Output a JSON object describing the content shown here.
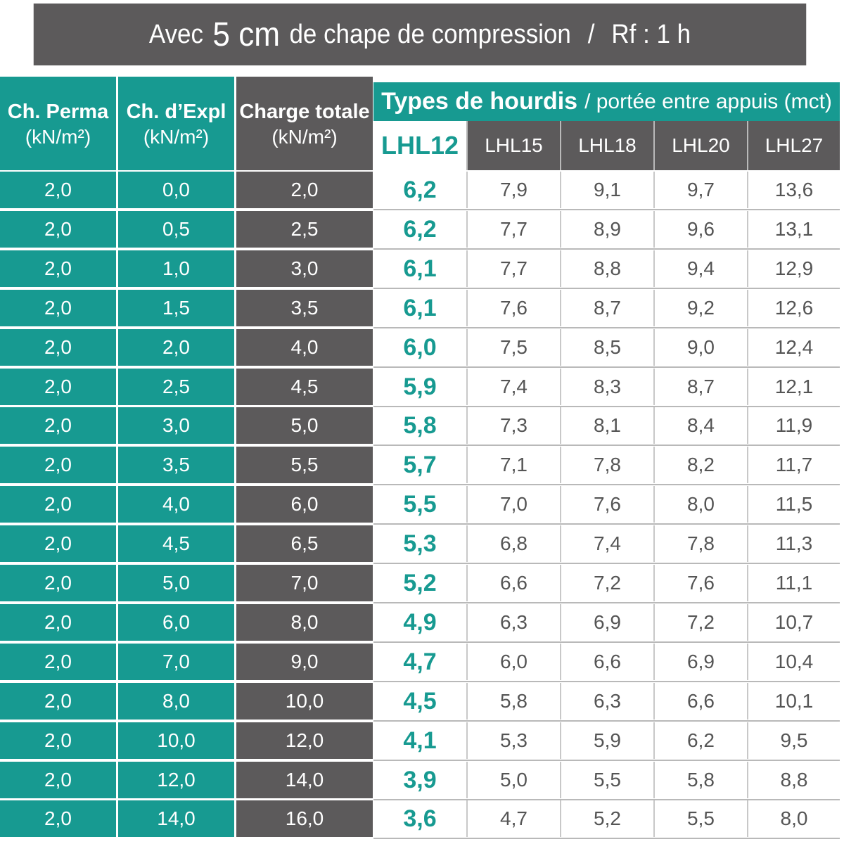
{
  "title": {
    "prefix": "Avec",
    "emphasis": "5 cm",
    "middle": "de chape de compression",
    "separator": "/",
    "suffix": "Rf : 1 h"
  },
  "headers": {
    "perma": {
      "label": "Ch. Perma",
      "unit": "(kN/m²)"
    },
    "expl": {
      "label": "Ch. d’Expl",
      "unit": "(kN/m²)"
    },
    "total": {
      "label": "Charge totale",
      "unit": "(kN/m²)"
    },
    "types": {
      "label": "Types de hourdis",
      "sub": "/ portée entre appuis (mct)"
    },
    "hourdis": [
      "LHL12",
      "LHL15",
      "LHL18",
      "LHL20",
      "LHL27"
    ]
  },
  "colors": {
    "teal": "#179a91",
    "gray": "#5c5a5b"
  },
  "rows": [
    {
      "perma": "2,0",
      "expl": "0,0",
      "total": "2,0",
      "spans": [
        "6,2",
        "7,9",
        "9,1",
        "9,7",
        "13,6"
      ]
    },
    {
      "perma": "2,0",
      "expl": "0,5",
      "total": "2,5",
      "spans": [
        "6,2",
        "7,7",
        "8,9",
        "9,6",
        "13,1"
      ]
    },
    {
      "perma": "2,0",
      "expl": "1,0",
      "total": "3,0",
      "spans": [
        "6,1",
        "7,7",
        "8,8",
        "9,4",
        "12,9"
      ]
    },
    {
      "perma": "2,0",
      "expl": "1,5",
      "total": "3,5",
      "spans": [
        "6,1",
        "7,6",
        "8,7",
        "9,2",
        "12,6"
      ]
    },
    {
      "perma": "2,0",
      "expl": "2,0",
      "total": "4,0",
      "spans": [
        "6,0",
        "7,5",
        "8,5",
        "9,0",
        "12,4"
      ]
    },
    {
      "perma": "2,0",
      "expl": "2,5",
      "total": "4,5",
      "spans": [
        "5,9",
        "7,4",
        "8,3",
        "8,7",
        "12,1"
      ]
    },
    {
      "perma": "2,0",
      "expl": "3,0",
      "total": "5,0",
      "spans": [
        "5,8",
        "7,3",
        "8,1",
        "8,4",
        "11,9"
      ]
    },
    {
      "perma": "2,0",
      "expl": "3,5",
      "total": "5,5",
      "spans": [
        "5,7",
        "7,1",
        "7,8",
        "8,2",
        "11,7"
      ]
    },
    {
      "perma": "2,0",
      "expl": "4,0",
      "total": "6,0",
      "spans": [
        "5,5",
        "7,0",
        "7,6",
        "8,0",
        "11,5"
      ]
    },
    {
      "perma": "2,0",
      "expl": "4,5",
      "total": "6,5",
      "spans": [
        "5,3",
        "6,8",
        "7,4",
        "7,8",
        "11,3"
      ]
    },
    {
      "perma": "2,0",
      "expl": "5,0",
      "total": "7,0",
      "spans": [
        "5,2",
        "6,6",
        "7,2",
        "7,6",
        "11,1"
      ]
    },
    {
      "perma": "2,0",
      "expl": "6,0",
      "total": "8,0",
      "spans": [
        "4,9",
        "6,3",
        "6,9",
        "7,2",
        "10,7"
      ]
    },
    {
      "perma": "2,0",
      "expl": "7,0",
      "total": "9,0",
      "spans": [
        "4,7",
        "6,0",
        "6,6",
        "6,9",
        "10,4"
      ]
    },
    {
      "perma": "2,0",
      "expl": "8,0",
      "total": "10,0",
      "spans": [
        "4,5",
        "5,8",
        "6,3",
        "6,6",
        "10,1"
      ]
    },
    {
      "perma": "2,0",
      "expl": "10,0",
      "total": "12,0",
      "spans": [
        "4,1",
        "5,3",
        "5,9",
        "6,2",
        "9,5"
      ]
    },
    {
      "perma": "2,0",
      "expl": "12,0",
      "total": "14,0",
      "spans": [
        "3,9",
        "5,0",
        "5,5",
        "5,8",
        "8,8"
      ]
    },
    {
      "perma": "2,0",
      "expl": "14,0",
      "total": "16,0",
      "spans": [
        "3,6",
        "4,7",
        "5,2",
        "5,5",
        "8,0"
      ]
    }
  ]
}
